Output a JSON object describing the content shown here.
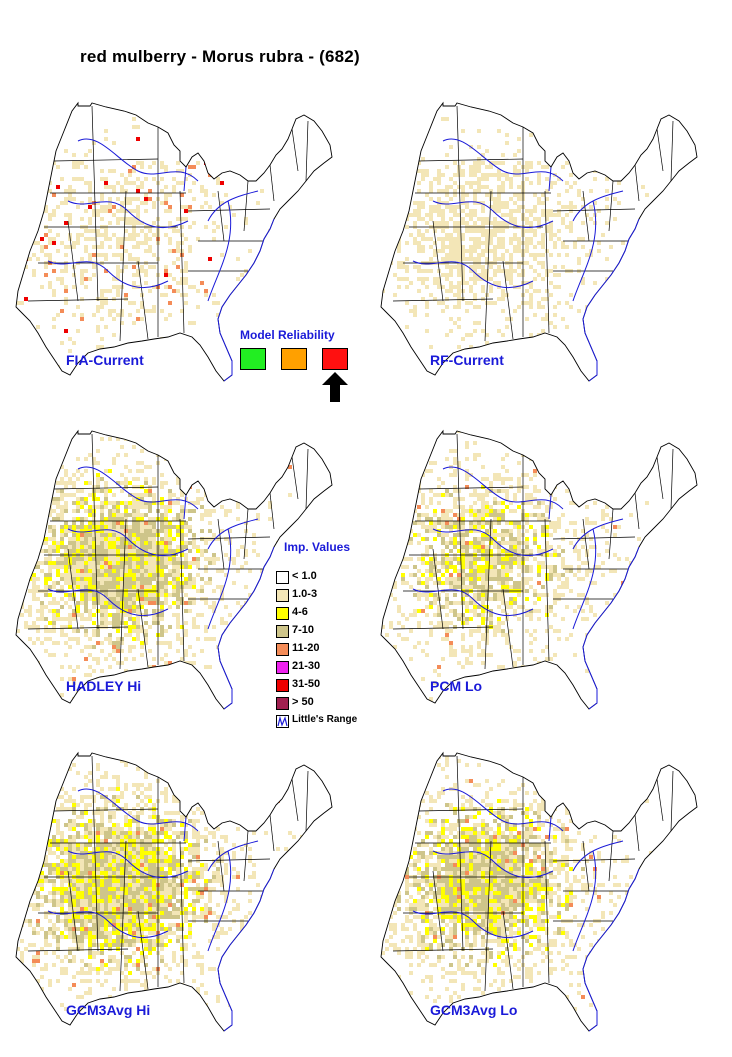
{
  "title": "red mulberry - Morus rubra - (682)",
  "panels": [
    {
      "label": "FIA-Current",
      "intensity": 0.55
    },
    {
      "label": "RF-Current",
      "intensity": 0.9
    },
    {
      "label": "HADLEY Hi",
      "intensity": 1.4
    },
    {
      "label": "PCM Lo",
      "intensity": 1.0
    },
    {
      "label": "GCM3Avg Hi",
      "intensity": 1.5
    },
    {
      "label": "GCM3Avg Lo",
      "intensity": 1.3
    }
  ],
  "reliability": {
    "title": "Model Reliability",
    "swatches": [
      "#22ee22",
      "#ffa000",
      "#ff1010"
    ],
    "selected_index": 2
  },
  "legend": {
    "title": "Imp. Values",
    "items": [
      {
        "label": "< 1.0",
        "color": "#ffffff"
      },
      {
        "label": "1.0-3",
        "color": "#f3e6b7"
      },
      {
        "label": "4-6",
        "color": "#ffff00"
      },
      {
        "label": "7-10",
        "color": "#cec58a"
      },
      {
        "label": "11-20",
        "color": "#f48c58"
      },
      {
        "label": "21-30",
        "color": "#ee22ee"
      },
      {
        "label": "31-50",
        "color": "#ee0000"
      },
      {
        "label": "> 50",
        "color": "#a02050"
      }
    ],
    "range_label": "Little's Range"
  },
  "colors": {
    "state_line": "#000000",
    "range_line": "#1a1ad8",
    "label": "#1a1ad8"
  }
}
